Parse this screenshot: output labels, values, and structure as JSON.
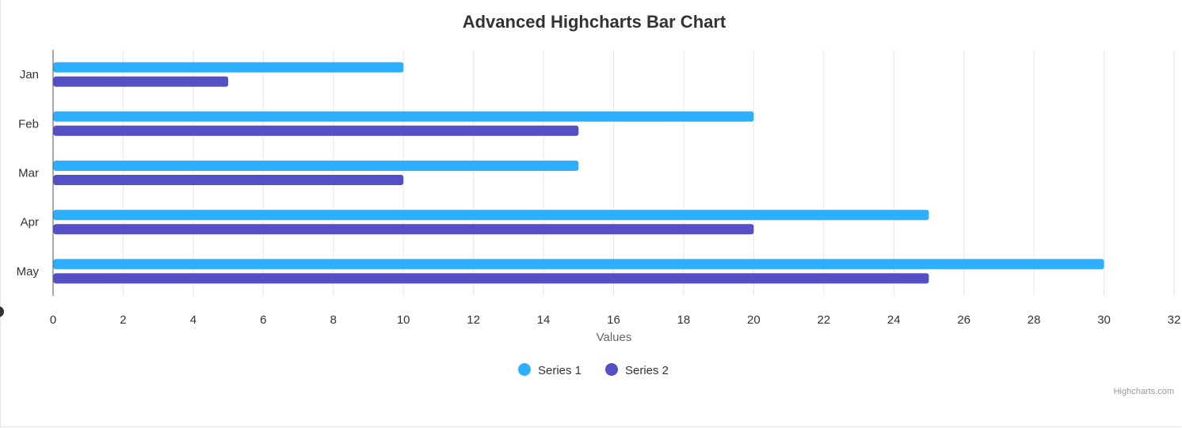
{
  "chart_data": {
    "type": "bar",
    "orientation": "horizontal",
    "title": "Advanced Highcharts Bar Chart",
    "categories": [
      "Jan",
      "Feb",
      "Mar",
      "Apr",
      "May"
    ],
    "series": [
      {
        "name": "Series 1",
        "color": "#2caffe",
        "values": [
          10,
          20,
          15,
          25,
          30
        ]
      },
      {
        "name": "Series 2",
        "color": "#544fc5",
        "values": [
          5,
          15,
          10,
          20,
          25
        ]
      }
    ],
    "xlabel": "Values",
    "xlim": [
      0,
      32
    ],
    "x_ticks": [
      "0",
      "2",
      "4",
      "6",
      "8",
      "10",
      "12",
      "14",
      "16",
      "18",
      "20",
      "22",
      "24",
      "26",
      "28",
      "30",
      "32"
    ],
    "grid": true,
    "legend_position": "bottom-center"
  },
  "credits": "Highcharts.com"
}
